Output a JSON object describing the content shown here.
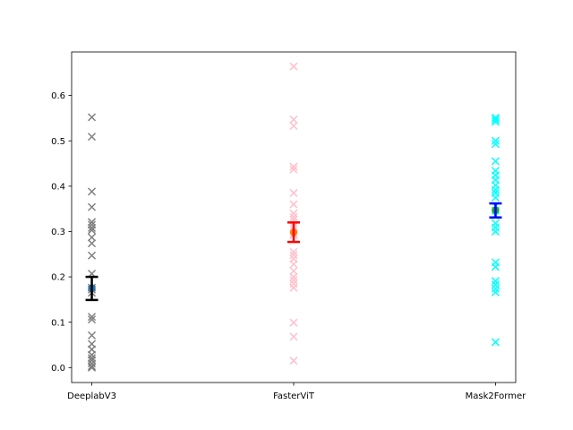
{
  "chart_data": {
    "type": "scatter",
    "title": "",
    "xlabel": "",
    "ylabel": "",
    "xlim": [
      -0.1,
      2.1
    ],
    "ylim": [
      -0.033,
      0.696
    ],
    "yticks": [
      0.0,
      0.1,
      0.2,
      0.3,
      0.4,
      0.5,
      0.6
    ],
    "ytick_labels": [
      "0.0",
      "0.1",
      "0.2",
      "0.3",
      "0.4",
      "0.5",
      "0.6"
    ],
    "categories": [
      "DeeplabV3",
      "FasterViT",
      "Mask2Former"
    ],
    "grid": false,
    "legend": false,
    "series": [
      {
        "name": "DeeplabV3",
        "x": 0,
        "marker_color": "#808080",
        "mean_color": "#1f77b4",
        "errorbar_color": "#000000",
        "values": [
          0.552,
          0.509,
          0.388,
          0.354,
          0.321,
          0.315,
          0.308,
          0.303,
          0.287,
          0.274,
          0.247,
          0.207,
          0.176,
          0.172,
          0.165,
          0.112,
          0.106,
          0.071,
          0.052,
          0.04,
          0.028,
          0.021,
          0.016,
          0.009,
          0.003,
          0.0
        ],
        "mean": 0.175,
        "ci": [
          0.149,
          0.2
        ]
      },
      {
        "name": "FasterViT",
        "x": 1,
        "marker_color": "#ffc0cb",
        "mean_color": "#ff7f0e",
        "errorbar_color": "#ff0000",
        "values": [
          0.664,
          0.547,
          0.533,
          0.443,
          0.437,
          0.385,
          0.36,
          0.34,
          0.332,
          0.326,
          0.311,
          0.305,
          0.296,
          0.292,
          0.255,
          0.248,
          0.24,
          0.228,
          0.213,
          0.2,
          0.193,
          0.185,
          0.176,
          0.099,
          0.068,
          0.015
        ],
        "mean": 0.298,
        "ci": [
          0.277,
          0.32
        ]
      },
      {
        "name": "Mask2Former",
        "x": 2,
        "marker_color": "#00ffff",
        "mean_color": "#2ca02c",
        "errorbar_color": "#0000ff",
        "values": [
          0.551,
          0.547,
          0.542,
          0.5,
          0.493,
          0.455,
          0.434,
          0.424,
          0.414,
          0.402,
          0.392,
          0.385,
          0.375,
          0.356,
          0.346,
          0.336,
          0.318,
          0.309,
          0.3,
          0.232,
          0.222,
          0.191,
          0.183,
          0.174,
          0.166,
          0.056
        ],
        "mean": 0.347,
        "ci": [
          0.331,
          0.362
        ]
      }
    ]
  }
}
